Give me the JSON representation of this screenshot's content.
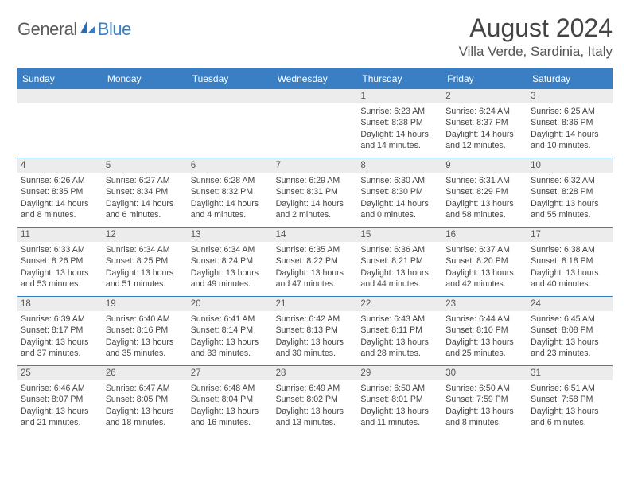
{
  "brand": {
    "part1": "General",
    "part2": "Blue"
  },
  "title": "August 2024",
  "location": "Villa Verde, Sardinia, Italy",
  "colors": {
    "accent": "#3a7fc4",
    "daynum_bg": "#ececec",
    "text": "#444444",
    "background": "#ffffff"
  },
  "dayNames": [
    "Sunday",
    "Monday",
    "Tuesday",
    "Wednesday",
    "Thursday",
    "Friday",
    "Saturday"
  ],
  "weeks": [
    [
      {
        "n": "",
        "empty": true
      },
      {
        "n": "",
        "empty": true
      },
      {
        "n": "",
        "empty": true
      },
      {
        "n": "",
        "empty": true
      },
      {
        "n": "1",
        "sr": "6:23 AM",
        "ss": "8:38 PM",
        "dl": "14 hours and 14 minutes."
      },
      {
        "n": "2",
        "sr": "6:24 AM",
        "ss": "8:37 PM",
        "dl": "14 hours and 12 minutes."
      },
      {
        "n": "3",
        "sr": "6:25 AM",
        "ss": "8:36 PM",
        "dl": "14 hours and 10 minutes."
      }
    ],
    [
      {
        "n": "4",
        "sr": "6:26 AM",
        "ss": "8:35 PM",
        "dl": "14 hours and 8 minutes."
      },
      {
        "n": "5",
        "sr": "6:27 AM",
        "ss": "8:34 PM",
        "dl": "14 hours and 6 minutes."
      },
      {
        "n": "6",
        "sr": "6:28 AM",
        "ss": "8:32 PM",
        "dl": "14 hours and 4 minutes."
      },
      {
        "n": "7",
        "sr": "6:29 AM",
        "ss": "8:31 PM",
        "dl": "14 hours and 2 minutes."
      },
      {
        "n": "8",
        "sr": "6:30 AM",
        "ss": "8:30 PM",
        "dl": "14 hours and 0 minutes."
      },
      {
        "n": "9",
        "sr": "6:31 AM",
        "ss": "8:29 PM",
        "dl": "13 hours and 58 minutes."
      },
      {
        "n": "10",
        "sr": "6:32 AM",
        "ss": "8:28 PM",
        "dl": "13 hours and 55 minutes."
      }
    ],
    [
      {
        "n": "11",
        "sr": "6:33 AM",
        "ss": "8:26 PM",
        "dl": "13 hours and 53 minutes."
      },
      {
        "n": "12",
        "sr": "6:34 AM",
        "ss": "8:25 PM",
        "dl": "13 hours and 51 minutes."
      },
      {
        "n": "13",
        "sr": "6:34 AM",
        "ss": "8:24 PM",
        "dl": "13 hours and 49 minutes."
      },
      {
        "n": "14",
        "sr": "6:35 AM",
        "ss": "8:22 PM",
        "dl": "13 hours and 47 minutes."
      },
      {
        "n": "15",
        "sr": "6:36 AM",
        "ss": "8:21 PM",
        "dl": "13 hours and 44 minutes."
      },
      {
        "n": "16",
        "sr": "6:37 AM",
        "ss": "8:20 PM",
        "dl": "13 hours and 42 minutes."
      },
      {
        "n": "17",
        "sr": "6:38 AM",
        "ss": "8:18 PM",
        "dl": "13 hours and 40 minutes."
      }
    ],
    [
      {
        "n": "18",
        "sr": "6:39 AM",
        "ss": "8:17 PM",
        "dl": "13 hours and 37 minutes."
      },
      {
        "n": "19",
        "sr": "6:40 AM",
        "ss": "8:16 PM",
        "dl": "13 hours and 35 minutes."
      },
      {
        "n": "20",
        "sr": "6:41 AM",
        "ss": "8:14 PM",
        "dl": "13 hours and 33 minutes."
      },
      {
        "n": "21",
        "sr": "6:42 AM",
        "ss": "8:13 PM",
        "dl": "13 hours and 30 minutes."
      },
      {
        "n": "22",
        "sr": "6:43 AM",
        "ss": "8:11 PM",
        "dl": "13 hours and 28 minutes."
      },
      {
        "n": "23",
        "sr": "6:44 AM",
        "ss": "8:10 PM",
        "dl": "13 hours and 25 minutes."
      },
      {
        "n": "24",
        "sr": "6:45 AM",
        "ss": "8:08 PM",
        "dl": "13 hours and 23 minutes."
      }
    ],
    [
      {
        "n": "25",
        "sr": "6:46 AM",
        "ss": "8:07 PM",
        "dl": "13 hours and 21 minutes."
      },
      {
        "n": "26",
        "sr": "6:47 AM",
        "ss": "8:05 PM",
        "dl": "13 hours and 18 minutes."
      },
      {
        "n": "27",
        "sr": "6:48 AM",
        "ss": "8:04 PM",
        "dl": "13 hours and 16 minutes."
      },
      {
        "n": "28",
        "sr": "6:49 AM",
        "ss": "8:02 PM",
        "dl": "13 hours and 13 minutes."
      },
      {
        "n": "29",
        "sr": "6:50 AM",
        "ss": "8:01 PM",
        "dl": "13 hours and 11 minutes."
      },
      {
        "n": "30",
        "sr": "6:50 AM",
        "ss": "7:59 PM",
        "dl": "13 hours and 8 minutes."
      },
      {
        "n": "31",
        "sr": "6:51 AM",
        "ss": "7:58 PM",
        "dl": "13 hours and 6 minutes."
      }
    ]
  ],
  "labels": {
    "sunrise": "Sunrise: ",
    "sunset": "Sunset: ",
    "daylight": "Daylight: "
  }
}
